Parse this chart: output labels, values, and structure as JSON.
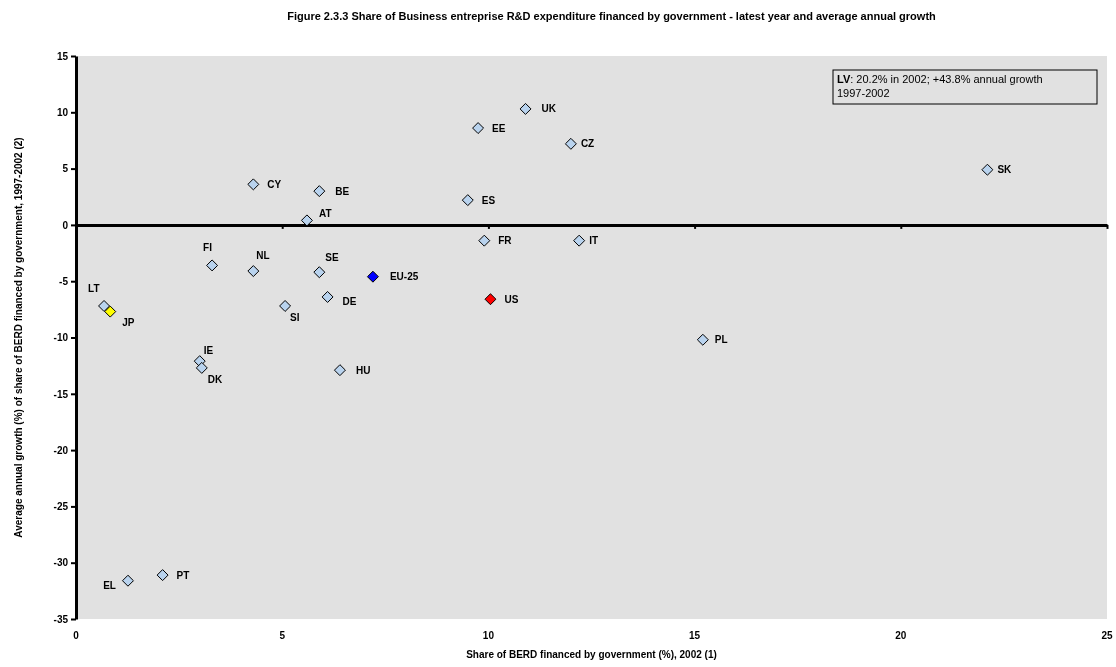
{
  "chart_data": {
    "type": "scatter",
    "title": "Figure 2.3.3 Share of Business entreprise R&D expenditure financed by government - latest year and average annual growth",
    "xlabel": "Share of BERD financed by government (%), 2002  (1)",
    "ylabel": "Average annual growth (%) of share of BERD financed by government, 1997-2002 (2)",
    "x": [
      0.68,
      0.83,
      3.3,
      4.3,
      4.3,
      5.07,
      5.6,
      5.9,
      5.9,
      6.1,
      7.2,
      6.4,
      3.0,
      3.05,
      1.26,
      2.1,
      9.5,
      9.75,
      10.9,
      9.9,
      10.05,
      12.0,
      12.2,
      15.2,
      22.1
    ],
    "series": [
      {
        "values": [
          -7.2,
          -7.7,
          -3.6,
          -4.1,
          3.6,
          -7.2,
          0.4,
          3.0,
          -4.2,
          -6.4,
          -4.6,
          -12.9,
          -12.1,
          -12.7,
          -31.6,
          -31.1,
          2.2,
          8.6,
          10.3,
          -1.4,
          -6.6,
          7.2,
          -1.4,
          -10.2,
          4.9
        ],
        "colors": [
          "#b9d3ee",
          "#ffff00",
          "#b9d3ee",
          "#b9d3ee",
          "#b9d3ee",
          "#b9d3ee",
          "#b9d3ee",
          "#b9d3ee",
          "#b9d3ee",
          "#b9d3ee",
          "#0000ff",
          "#b9d3ee",
          "#b9d3ee",
          "#b9d3ee",
          "#b9d3ee",
          "#b9d3ee",
          "#b9d3ee",
          "#b9d3ee",
          "#b9d3ee",
          "#b9d3ee",
          "#ff0000",
          "#b9d3ee",
          "#b9d3ee",
          "#b9d3ee",
          "#b9d3ee"
        ]
      }
    ],
    "marker": "diamond",
    "xlim": [
      0,
      25
    ],
    "xticks": [
      0,
      5,
      10,
      15,
      20,
      25
    ],
    "ylim": [
      -35,
      15
    ],
    "yticks": [
      -35,
      -30,
      -25,
      -20,
      -15,
      -10,
      -5,
      0,
      5,
      10,
      15
    ],
    "ref_lines": [
      {
        "axis": "y",
        "value": 0
      }
    ],
    "annotations": [
      {
        "text": "LT",
        "x": 0.68,
        "y": -7.2
      },
      {
        "text": "JP",
        "x": 0.83,
        "y": -7.7
      },
      {
        "text": "FI",
        "x": 3.3,
        "y": -3.6
      },
      {
        "text": "NL",
        "x": 4.3,
        "y": -4.1
      },
      {
        "text": "CY",
        "x": 4.3,
        "y": 3.6
      },
      {
        "text": "SI",
        "x": 5.07,
        "y": -7.2
      },
      {
        "text": "AT",
        "x": 5.6,
        "y": 0.4
      },
      {
        "text": "BE",
        "x": 5.9,
        "y": 3.0
      },
      {
        "text": "SE",
        "x": 5.9,
        "y": -4.2
      },
      {
        "text": "DE",
        "x": 6.1,
        "y": -6.4
      },
      {
        "text": "EU-25",
        "x": 7.2,
        "y": -4.6
      },
      {
        "text": "HU",
        "x": 6.4,
        "y": -12.9
      },
      {
        "text": "IE",
        "x": 3.0,
        "y": -12.1
      },
      {
        "text": "DK",
        "x": 3.05,
        "y": -12.7
      },
      {
        "text": "EL",
        "x": 1.26,
        "y": -31.6
      },
      {
        "text": "PT",
        "x": 2.1,
        "y": -31.1
      },
      {
        "text": "ES",
        "x": 9.5,
        "y": 2.2
      },
      {
        "text": "EE",
        "x": 9.75,
        "y": 8.6
      },
      {
        "text": "UK",
        "x": 10.9,
        "y": 10.3
      },
      {
        "text": "FR",
        "x": 9.9,
        "y": -1.4
      },
      {
        "text": "US",
        "x": 10.05,
        "y": -6.6
      },
      {
        "text": "CZ",
        "x": 12.0,
        "y": 7.2
      },
      {
        "text": "IT",
        "x": 12.2,
        "y": -1.4
      },
      {
        "text": "PL",
        "x": 15.2,
        "y": -10.2
      },
      {
        "text": "SK",
        "x": 22.1,
        "y": 4.9
      },
      "LV: 20.2% in 2002; +43.8% annual growth 1997-2002"
    ]
  }
}
